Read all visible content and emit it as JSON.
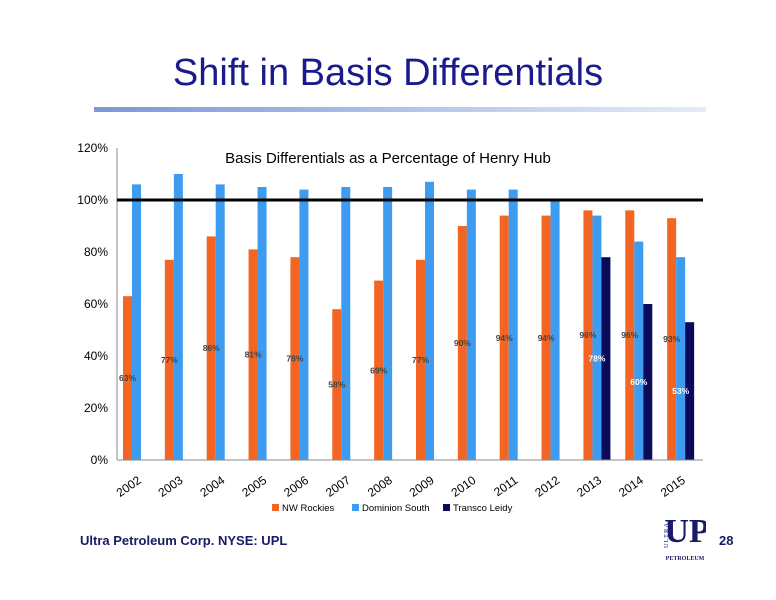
{
  "slide": {
    "title": "Shift in Basis Differentials",
    "footer": "Ultra Petroleum Corp. NYSE: UPL",
    "page_number": "28",
    "logo": {
      "ultra": "ULTRA",
      "up": "UP",
      "petroleum": "PETROLEUM"
    }
  },
  "colors": {
    "title": "#1a1a8c",
    "nw_rockies": "#f26522",
    "dominion_south": "#3d9bf0",
    "transco_leidy": "#0b0b5c",
    "reference_line": "#000000"
  },
  "chart_data": {
    "type": "bar",
    "title": "Basis Differentials as a Percentage of Henry Hub",
    "xlabel": "",
    "ylabel": "",
    "categories": [
      "2002",
      "2003",
      "2004",
      "2005",
      "2006",
      "2007",
      "2008",
      "2009",
      "2010",
      "2011",
      "2012",
      "2013",
      "2014",
      "2015"
    ],
    "ylim": [
      0,
      120
    ],
    "yticks": [
      "0%",
      "20%",
      "40%",
      "60%",
      "80%",
      "100%",
      "120%"
    ],
    "reference_line": 100,
    "grid": false,
    "legend_position": "bottom",
    "series": [
      {
        "name": "NW Rockies",
        "values": [
          63,
          77,
          86,
          81,
          78,
          58,
          69,
          77,
          90,
          94,
          94,
          96,
          96,
          93
        ],
        "labels": [
          "63%",
          "77%",
          "86%",
          "81%",
          "78%",
          "58%",
          "69%",
          "77%",
          "90%",
          "94%",
          "94%",
          "96%",
          "96%",
          "93%"
        ]
      },
      {
        "name": "Dominion South",
        "values": [
          106,
          110,
          106,
          105,
          104,
          105,
          105,
          107,
          104,
          104,
          100,
          94,
          84,
          78
        ],
        "labels": []
      },
      {
        "name": "Transco Leidy",
        "values": [
          null,
          null,
          null,
          null,
          null,
          null,
          null,
          null,
          null,
          null,
          null,
          78,
          60,
          53
        ],
        "labels": [
          "",
          "",
          "",
          "",
          "",
          "",
          "",
          "",
          "",
          "",
          "",
          "78%",
          "60%",
          "53%"
        ]
      }
    ]
  }
}
